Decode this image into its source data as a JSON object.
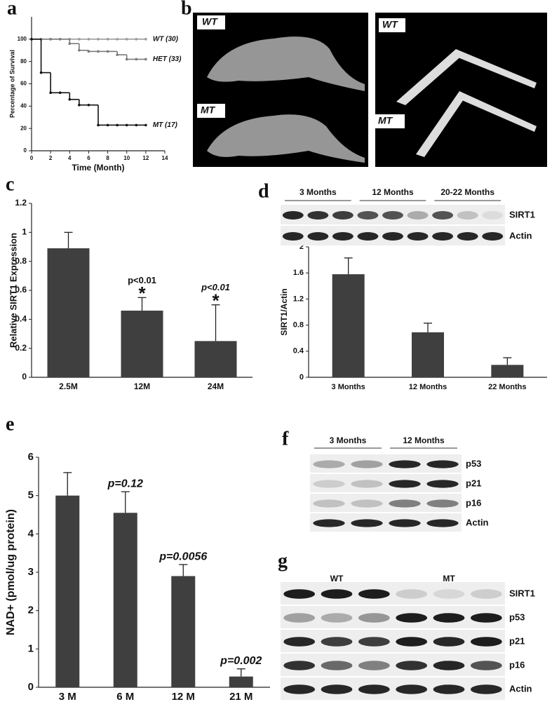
{
  "figure": {
    "panel_labels": [
      "a",
      "b",
      "c",
      "d",
      "e",
      "f",
      "g"
    ]
  },
  "chart_data": [
    {
      "type": "step",
      "x_label": "Time (Month)",
      "y_label": "Percentage of Survival",
      "x": [
        0,
        1,
        2,
        3,
        4,
        5,
        6,
        7,
        8,
        9,
        10,
        11,
        12
      ],
      "series": [
        {
          "name": "WT (30)",
          "color": "#9a9a9a",
          "values": [
            100,
            100,
            100,
            100,
            100,
            100,
            100,
            100,
            100,
            100,
            100,
            100,
            100
          ]
        },
        {
          "name": "HET (33)",
          "color": "#7a7a7a",
          "values": [
            100,
            100,
            100,
            100,
            96,
            90,
            89,
            89,
            89,
            86,
            82,
            82,
            82
          ]
        },
        {
          "name": "MT (17)",
          "color": "#111111",
          "values": [
            100,
            70,
            52,
            52,
            46,
            41,
            41,
            23,
            23,
            23,
            23,
            23,
            23
          ]
        }
      ],
      "xlim": [
        0,
        14
      ],
      "xticks": [
        0,
        2,
        4,
        6,
        8,
        10,
        12,
        14
      ],
      "ylim": [
        0,
        120
      ],
      "yticks": [
        0,
        20,
        40,
        60,
        80,
        100
      ]
    },
    {
      "type": "bar",
      "y_label": "Relative SIRT1 Expression",
      "color": "#3f3f3f",
      "categories": [
        "2.5M",
        "12M",
        "24M"
      ],
      "values": [
        0.89,
        0.46,
        0.25
      ],
      "errors": [
        0.11,
        0.09,
        0.25
      ],
      "annotations": [
        null,
        "p<0.01",
        "p<0.01"
      ],
      "markers": [
        null,
        "*",
        "*"
      ],
      "ylim": [
        0,
        1.2
      ],
      "yticks": [
        0,
        0.2,
        0.4,
        0.6,
        0.8,
        1,
        1.2
      ]
    },
    {
      "type": "bar",
      "y_label": "SIRT1/Actin",
      "color": "#3f3f3f",
      "categories": [
        "3 Months",
        "12 Months",
        "22 Months"
      ],
      "values": [
        1.58,
        0.69,
        0.19
      ],
      "errors": [
        0.25,
        0.14,
        0.11
      ],
      "ylim": [
        0,
        2
      ],
      "yticks": [
        0,
        0.4,
        0.8,
        1.2,
        1.6,
        2
      ]
    },
    {
      "type": "bar",
      "y_label": "NAD+ (pmol/ug protein)",
      "color": "#3f3f3f",
      "categories": [
        "3 M",
        "6 M",
        "12 M",
        "21 M"
      ],
      "values": [
        5.0,
        4.55,
        2.9,
        0.28
      ],
      "errors": [
        0.6,
        0.55,
        0.3,
        0.2
      ],
      "annotations": [
        null,
        "p=0.12",
        "p=0.0056",
        "p=0.002"
      ],
      "ylim": [
        0,
        6
      ],
      "yticks": [
        0,
        1,
        2,
        3,
        4,
        5,
        6
      ]
    }
  ],
  "panel_b": {
    "labels": [
      "WT",
      "MT",
      "WT",
      "MT"
    ]
  },
  "panel_d_blot": {
    "groups": [
      "3 Months",
      "12 Months",
      "20-22 Months"
    ],
    "rows": [
      "SIRT1",
      "Actin"
    ]
  },
  "panel_f": {
    "groups": [
      "3 Months",
      "12 Months"
    ],
    "rows": [
      "p53",
      "p21",
      "p16",
      "Actin"
    ]
  },
  "panel_g": {
    "groups": [
      "WT",
      "MT"
    ],
    "rows": [
      "SIRT1",
      "p53",
      "p21",
      "p16",
      "Actin"
    ]
  }
}
